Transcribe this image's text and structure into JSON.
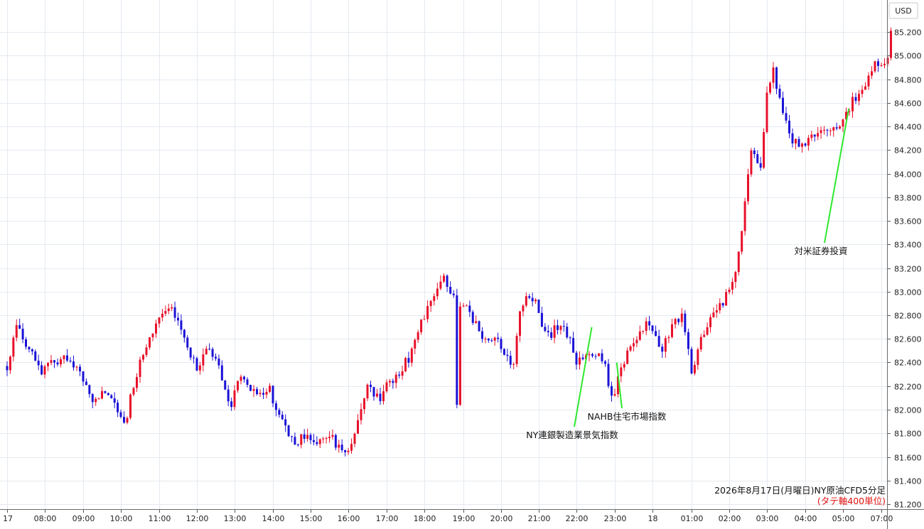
{
  "chart_data": {
    "type": "candlestick",
    "title": "2026年8月17日(月曜日)NY原油CFD5分足",
    "subtitle": "(タテ軸400単位)",
    "ylabel": "USD",
    "ylim": [
      81.17,
      85.31
    ],
    "y_ticks": [
      "81.200",
      "81.400",
      "81.600",
      "81.800",
      "82.000",
      "82.200",
      "82.400",
      "82.600",
      "82.800",
      "83.000",
      "83.200",
      "83.400",
      "83.600",
      "83.800",
      "84.000",
      "84.200",
      "84.400",
      "84.600",
      "84.800",
      "85.000",
      "85.200"
    ],
    "x_ticks": [
      "17",
      "08:00",
      "09:00",
      "10:00",
      "11:00",
      "12:00",
      "13:00",
      "14:00",
      "15:00",
      "16:00",
      "17:00",
      "18:00",
      "19:00",
      "20:00",
      "21:00",
      "22:00",
      "23:00",
      "18",
      "01:00",
      "02:00",
      "03:00",
      "04:00",
      "05:00",
      "07:00"
    ],
    "grid": true,
    "colors": {
      "up": "#e8102a",
      "down": "#1a12d6",
      "annotation_line": "#2ee82e",
      "grid": "#e4eaf1"
    },
    "close_path": [
      [
        0,
        82.37
      ],
      [
        0.25,
        82.7
      ],
      [
        0.5,
        82.52
      ],
      [
        0.7,
        82.5
      ],
      [
        0.9,
        82.3
      ],
      [
        1.2,
        82.38
      ],
      [
        1.6,
        82.42
      ],
      [
        1.8,
        82.36
      ],
      [
        2.0,
        82.25
      ],
      [
        2.3,
        82.06
      ],
      [
        2.7,
        82.18
      ],
      [
        3.1,
        81.88
      ],
      [
        3.4,
        82.3
      ],
      [
        3.8,
        82.65
      ],
      [
        4.3,
        82.9
      ],
      [
        4.7,
        82.6
      ],
      [
        5.0,
        82.32
      ],
      [
        5.3,
        82.52
      ],
      [
        5.6,
        82.38
      ],
      [
        5.9,
        82.01
      ],
      [
        6.1,
        82.3
      ],
      [
        6.5,
        82.15
      ],
      [
        6.9,
        82.18
      ],
      [
        7.2,
        81.9
      ],
      [
        7.6,
        81.72
      ],
      [
        7.9,
        81.8
      ],
      [
        8.2,
        81.72
      ],
      [
        8.5,
        81.78
      ],
      [
        8.9,
        81.6
      ],
      [
        9.2,
        81.85
      ],
      [
        9.5,
        82.2
      ],
      [
        9.8,
        82.09
      ],
      [
        10.2,
        82.28
      ],
      [
        10.6,
        82.45
      ],
      [
        10.9,
        82.75
      ],
      [
        11.3,
        83.0
      ],
      [
        11.5,
        83.12
      ],
      [
        11.75,
        82.96
      ],
      [
        11.82,
        81.96
      ],
      [
        11.92,
        82.92
      ],
      [
        12.2,
        82.8
      ],
      [
        12.6,
        82.6
      ],
      [
        13.0,
        82.55
      ],
      [
        13.3,
        82.3
      ],
      [
        13.5,
        82.8
      ],
      [
        13.7,
        83.0
      ],
      [
        13.9,
        82.9
      ],
      [
        14.2,
        82.6
      ],
      [
        14.5,
        82.7
      ],
      [
        14.8,
        82.65
      ],
      [
        15.0,
        82.38
      ],
      [
        15.4,
        82.48
      ],
      [
        15.7,
        82.42
      ],
      [
        15.95,
        82.1
      ],
      [
        16.2,
        82.4
      ],
      [
        16.6,
        82.65
      ],
      [
        16.9,
        82.78
      ],
      [
        17.2,
        82.45
      ],
      [
        17.5,
        82.7
      ],
      [
        17.75,
        82.82
      ],
      [
        18.0,
        82.35
      ],
      [
        18.4,
        82.7
      ],
      [
        18.75,
        82.87
      ],
      [
        19.05,
        83.05
      ],
      [
        19.3,
        83.4
      ],
      [
        19.55,
        84.2
      ],
      [
        19.85,
        84.05
      ],
      [
        20.0,
        84.7
      ],
      [
        20.15,
        84.88
      ],
      [
        20.3,
        84.7
      ],
      [
        20.6,
        84.3
      ],
      [
        20.9,
        84.2
      ],
      [
        21.2,
        84.3
      ],
      [
        21.6,
        84.35
      ],
      [
        22.0,
        84.45
      ],
      [
        22.3,
        84.65
      ],
      [
        22.6,
        84.75
      ],
      [
        22.9,
        84.95
      ],
      [
        23.1,
        84.9
      ],
      [
        23.3,
        85.21
      ]
    ],
    "annotations": [
      {
        "label": "NY連銀製造業景気指数",
        "x": 15.4,
        "y": 82.7
      },
      {
        "label": "NAHB住宅市場指数",
        "x": 16.05,
        "y": 82.4
      },
      {
        "label": "対米証券投資",
        "x": 22.15,
        "y": 84.55
      }
    ]
  },
  "caption": {
    "line1": "2026年8月17日(月曜日)NY原油CFD5分足",
    "line2": "(タテ軸400単位)"
  }
}
